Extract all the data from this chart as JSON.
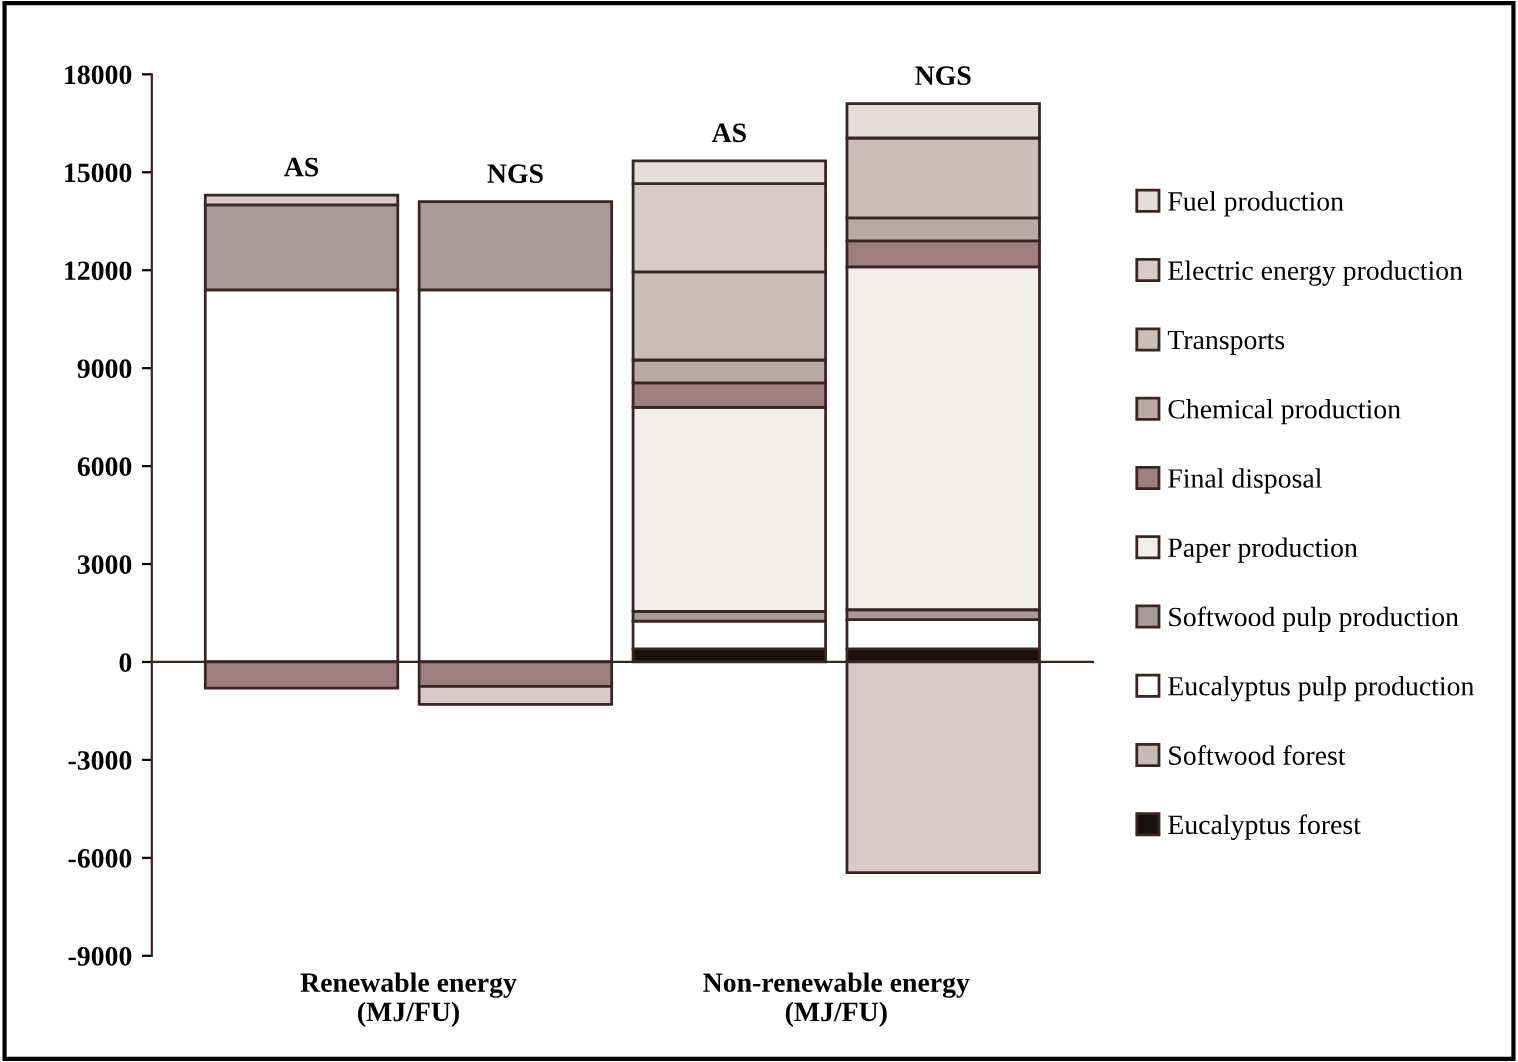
{
  "chart_data": {
    "type": "bar",
    "stacked": true,
    "categories": [
      "AS",
      "NGS",
      "AS",
      "NGS"
    ],
    "series": [
      {
        "name": "Eucalyptus forest",
        "color": "#1a1010",
        "values": [
          null,
          null,
          400,
          400
        ]
      },
      {
        "name": "Softwood forest",
        "color": "#c9b9b9",
        "values": [
          null,
          null,
          null,
          null
        ]
      },
      {
        "name": "Eucalyptus pulp production",
        "color": "#ffffff",
        "values": [
          11400,
          11400,
          850,
          900
        ]
      },
      {
        "name": "Softwood pulp production",
        "color": "#a89a9a",
        "values": [
          2600,
          2700,
          300,
          300
        ]
      },
      {
        "name": "Paper production",
        "color": "#f3eeee",
        "values": [
          null,
          null,
          6250,
          10500
        ]
      },
      {
        "name": "Final disposal",
        "color": "#9e7f7f",
        "values": [
          -800,
          -750,
          750,
          800
        ]
      },
      {
        "name": "Chemical production",
        "color": "#bba8a8",
        "values": [
          null,
          null,
          700,
          700
        ]
      },
      {
        "name": "Transports",
        "color": "#cdbcbc",
        "values": [
          null,
          null,
          2700,
          2450
        ]
      },
      {
        "name": "Electric energy production",
        "color": "#d8caca",
        "values": [
          300,
          -550,
          2700,
          -6450
        ]
      },
      {
        "name": "Fuel production",
        "color": "#e6dcdc",
        "values": [
          null,
          null,
          700,
          1050
        ]
      }
    ],
    "ylim": [
      -9000,
      18000
    ],
    "yticks": [
      -9000,
      -6000,
      -3000,
      0,
      3000,
      6000,
      9000,
      12000,
      15000,
      18000
    ],
    "annotations": [
      "Renewable energy\n(MJ/FU)",
      "Non-renewable energy\n(MJ/FU)"
    ],
    "legend": "right"
  }
}
